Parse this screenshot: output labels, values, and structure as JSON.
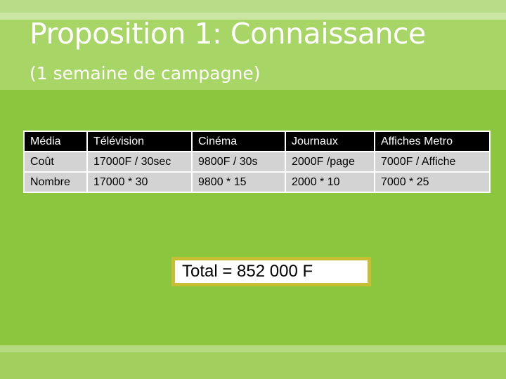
{
  "slide": {
    "title": "Proposition 1: Connaissance",
    "subtitle": "(1 semaine de campagne)"
  },
  "table": {
    "headers": [
      "Média",
      "Télévision",
      "Cinéma",
      "Journaux",
      "Affiches Metro"
    ],
    "rows": [
      [
        "Coût",
        "17000F / 30sec",
        "9800F / 30s",
        "2000F /page",
        "7000F / Affiche"
      ],
      [
        "Nombre",
        "17000 * 30",
        "9800 * 15",
        "2000 * 10",
        "7000 * 25"
      ]
    ]
  },
  "total": "Total = 852 000 F",
  "colors": {
    "background": "#8cc63f",
    "header_band": "#a7d566",
    "table_header_bg": "#000000",
    "table_cell_bg": "#d3d3d3",
    "total_border": "#c8be33"
  }
}
